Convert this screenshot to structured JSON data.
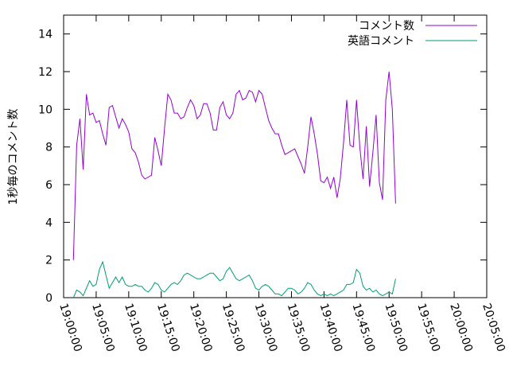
{
  "chart_data": {
    "type": "line",
    "ylabel": "1秒毎のコメント数",
    "ylim": [
      0,
      15
    ],
    "yticks": [
      0,
      2,
      4,
      6,
      8,
      10,
      12,
      14
    ],
    "xlim": [
      "19:00:00",
      "20:05:00"
    ],
    "xticks": [
      "19:00:00",
      "19:05:00",
      "19:10:00",
      "19:15:00",
      "19:20:00",
      "19:25:00",
      "19:30:00",
      "19:35:00",
      "19:40:00",
      "19:45:00",
      "19:50:00",
      "19:55:00",
      "20:00:00",
      "20:05:00"
    ],
    "legend_position": "top-right",
    "series": [
      {
        "name": "コメント数",
        "color": "#9400d3",
        "points": [
          [
            "19:01:30",
            2.0
          ],
          [
            "19:02:00",
            8.1
          ],
          [
            "19:02:30",
            9.5
          ],
          [
            "19:03:00",
            6.8
          ],
          [
            "19:03:30",
            10.8
          ],
          [
            "19:04:00",
            9.7
          ],
          [
            "19:04:30",
            9.8
          ],
          [
            "19:05:00",
            9.3
          ],
          [
            "19:05:30",
            9.4
          ],
          [
            "19:06:00",
            8.7
          ],
          [
            "19:06:30",
            8.1
          ],
          [
            "19:07:00",
            10.1
          ],
          [
            "19:07:30",
            10.2
          ],
          [
            "19:08:00",
            9.6
          ],
          [
            "19:08:30",
            9.0
          ],
          [
            "19:09:00",
            9.5
          ],
          [
            "19:09:30",
            9.2
          ],
          [
            "19:10:00",
            8.8
          ],
          [
            "19:10:30",
            7.9
          ],
          [
            "19:11:00",
            7.7
          ],
          [
            "19:11:30",
            7.2
          ],
          [
            "19:12:00",
            6.5
          ],
          [
            "19:12:30",
            6.3
          ],
          [
            "19:13:00",
            6.4
          ],
          [
            "19:13:30",
            6.5
          ],
          [
            "19:14:00",
            8.5
          ],
          [
            "19:14:30",
            7.8
          ],
          [
            "19:15:00",
            7.0
          ],
          [
            "19:15:30",
            9.0
          ],
          [
            "19:16:00",
            10.8
          ],
          [
            "19:16:30",
            10.5
          ],
          [
            "19:17:00",
            9.8
          ],
          [
            "19:17:30",
            9.8
          ],
          [
            "19:18:00",
            9.5
          ],
          [
            "19:18:30",
            9.6
          ],
          [
            "19:19:00",
            10.1
          ],
          [
            "19:19:30",
            10.5
          ],
          [
            "19:20:00",
            10.2
          ],
          [
            "19:20:30",
            9.5
          ],
          [
            "19:21:00",
            9.7
          ],
          [
            "19:21:30",
            10.3
          ],
          [
            "19:22:00",
            10.3
          ],
          [
            "19:22:30",
            9.8
          ],
          [
            "19:23:00",
            8.9
          ],
          [
            "19:23:30",
            8.9
          ],
          [
            "19:24:00",
            10.1
          ],
          [
            "19:24:30",
            10.4
          ],
          [
            "19:25:00",
            9.7
          ],
          [
            "19:25:30",
            9.5
          ],
          [
            "19:26:00",
            9.8
          ],
          [
            "19:26:30",
            10.8
          ],
          [
            "19:27:00",
            11.0
          ],
          [
            "19:27:30",
            10.5
          ],
          [
            "19:28:00",
            10.6
          ],
          [
            "19:28:30",
            11.0
          ],
          [
            "19:29:00",
            10.9
          ],
          [
            "19:29:30",
            10.4
          ],
          [
            "19:30:00",
            11.0
          ],
          [
            "19:30:30",
            10.8
          ],
          [
            "19:31:00",
            10.1
          ],
          [
            "19:31:30",
            9.4
          ],
          [
            "19:32:00",
            9.0
          ],
          [
            "19:32:30",
            8.7
          ],
          [
            "19:33:00",
            8.7
          ],
          [
            "19:33:30",
            8.1
          ],
          [
            "19:34:00",
            7.6
          ],
          [
            "19:34:30",
            7.7
          ],
          [
            "19:35:00",
            7.8
          ],
          [
            "19:35:30",
            7.9
          ],
          [
            "19:36:00",
            7.5
          ],
          [
            "19:36:30",
            7.1
          ],
          [
            "19:37:00",
            6.6
          ],
          [
            "19:37:30",
            8.0
          ],
          [
            "19:38:00",
            9.6
          ],
          [
            "19:38:30",
            8.7
          ],
          [
            "19:39:00",
            7.6
          ],
          [
            "19:39:30",
            6.2
          ],
          [
            "19:40:00",
            6.1
          ],
          [
            "19:40:30",
            6.4
          ],
          [
            "19:41:00",
            5.8
          ],
          [
            "19:41:30",
            6.4
          ],
          [
            "19:42:00",
            5.3
          ],
          [
            "19:42:30",
            6.3
          ],
          [
            "19:43:00",
            8.2
          ],
          [
            "19:43:30",
            10.5
          ],
          [
            "19:44:00",
            8.1
          ],
          [
            "19:44:30",
            8.0
          ],
          [
            "19:45:00",
            10.5
          ],
          [
            "19:45:30",
            8.0
          ],
          [
            "19:46:00",
            6.3
          ],
          [
            "19:46:30",
            9.1
          ],
          [
            "19:47:00",
            5.9
          ],
          [
            "19:47:30",
            7.7
          ],
          [
            "19:48:00",
            9.7
          ],
          [
            "19:48:30",
            6.1
          ],
          [
            "19:49:00",
            5.2
          ],
          [
            "19:49:30",
            10.5
          ],
          [
            "19:50:00",
            12.0
          ],
          [
            "19:50:30",
            10.0
          ],
          [
            "19:51:00",
            5.0
          ]
        ]
      },
      {
        "name": "英語コメント",
        "color": "#009e73",
        "points": [
          [
            "19:01:30",
            0.0
          ],
          [
            "19:02:00",
            0.4
          ],
          [
            "19:02:30",
            0.3
          ],
          [
            "19:03:00",
            0.1
          ],
          [
            "19:03:30",
            0.5
          ],
          [
            "19:04:00",
            0.9
          ],
          [
            "19:04:30",
            0.6
          ],
          [
            "19:05:00",
            0.7
          ],
          [
            "19:05:30",
            1.5
          ],
          [
            "19:06:00",
            1.9
          ],
          [
            "19:06:30",
            1.2
          ],
          [
            "19:07:00",
            0.5
          ],
          [
            "19:07:30",
            0.8
          ],
          [
            "19:08:00",
            1.1
          ],
          [
            "19:08:30",
            0.8
          ],
          [
            "19:09:00",
            1.1
          ],
          [
            "19:09:30",
            0.7
          ],
          [
            "19:10:00",
            0.6
          ],
          [
            "19:10:30",
            0.6
          ],
          [
            "19:11:00",
            0.7
          ],
          [
            "19:11:30",
            0.6
          ],
          [
            "19:12:00",
            0.6
          ],
          [
            "19:12:30",
            0.4
          ],
          [
            "19:13:00",
            0.3
          ],
          [
            "19:13:30",
            0.5
          ],
          [
            "19:14:00",
            0.8
          ],
          [
            "19:14:30",
            0.7
          ],
          [
            "19:15:00",
            0.4
          ],
          [
            "19:15:30",
            0.3
          ],
          [
            "19:16:00",
            0.5
          ],
          [
            "19:16:30",
            0.7
          ],
          [
            "19:17:00",
            0.8
          ],
          [
            "19:17:30",
            0.7
          ],
          [
            "19:18:00",
            0.9
          ],
          [
            "19:18:30",
            1.2
          ],
          [
            "19:19:00",
            1.3
          ],
          [
            "19:19:30",
            1.2
          ],
          [
            "19:20:00",
            1.1
          ],
          [
            "19:20:30",
            1.0
          ],
          [
            "19:21:00",
            1.0
          ],
          [
            "19:21:30",
            1.1
          ],
          [
            "19:22:00",
            1.2
          ],
          [
            "19:22:30",
            1.3
          ],
          [
            "19:23:00",
            1.3
          ],
          [
            "19:23:30",
            1.1
          ],
          [
            "19:24:00",
            0.9
          ],
          [
            "19:24:30",
            1.0
          ],
          [
            "19:25:00",
            1.4
          ],
          [
            "19:25:30",
            1.6
          ],
          [
            "19:26:00",
            1.3
          ],
          [
            "19:26:30",
            1.0
          ],
          [
            "19:27:00",
            0.9
          ],
          [
            "19:27:30",
            1.0
          ],
          [
            "19:28:00",
            1.1
          ],
          [
            "19:28:30",
            1.2
          ],
          [
            "19:29:00",
            0.9
          ],
          [
            "19:29:30",
            0.5
          ],
          [
            "19:30:00",
            0.4
          ],
          [
            "19:30:30",
            0.6
          ],
          [
            "19:31:00",
            0.7
          ],
          [
            "19:31:30",
            0.6
          ],
          [
            "19:32:00",
            0.4
          ],
          [
            "19:32:30",
            0.2
          ],
          [
            "19:33:00",
            0.2
          ],
          [
            "19:33:30",
            0.1
          ],
          [
            "19:34:00",
            0.3
          ],
          [
            "19:34:30",
            0.5
          ],
          [
            "19:35:00",
            0.5
          ],
          [
            "19:35:30",
            0.4
          ],
          [
            "19:36:00",
            0.2
          ],
          [
            "19:36:30",
            0.3
          ],
          [
            "19:37:00",
            0.5
          ],
          [
            "19:37:30",
            0.8
          ],
          [
            "19:38:00",
            0.7
          ],
          [
            "19:38:30",
            0.4
          ],
          [
            "19:39:00",
            0.2
          ],
          [
            "19:39:30",
            0.1
          ],
          [
            "19:40:00",
            0.2
          ],
          [
            "19:40:30",
            0.1
          ],
          [
            "19:41:00",
            0.2
          ],
          [
            "19:41:30",
            0.1
          ],
          [
            "19:42:00",
            0.2
          ],
          [
            "19:42:30",
            0.3
          ],
          [
            "19:43:00",
            0.4
          ],
          [
            "19:43:30",
            0.7
          ],
          [
            "19:44:00",
            0.7
          ],
          [
            "19:44:30",
            0.8
          ],
          [
            "19:45:00",
            1.5
          ],
          [
            "19:45:30",
            1.3
          ],
          [
            "19:46:00",
            0.6
          ],
          [
            "19:46:30",
            0.4
          ],
          [
            "19:47:00",
            0.5
          ],
          [
            "19:47:30",
            0.3
          ],
          [
            "19:48:00",
            0.4
          ],
          [
            "19:48:30",
            0.2
          ],
          [
            "19:49:00",
            0.1
          ],
          [
            "19:49:30",
            0.2
          ],
          [
            "19:50:00",
            0.3
          ],
          [
            "19:50:30",
            0.2
          ],
          [
            "19:51:00",
            1.0
          ]
        ]
      }
    ]
  }
}
